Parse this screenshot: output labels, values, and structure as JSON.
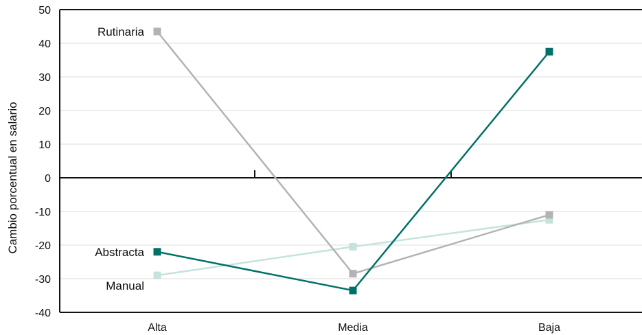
{
  "chart_data": {
    "type": "line",
    "categories": [
      "Alta",
      "Media",
      "Baja"
    ],
    "ylabel": "Cambio porcentual en salario",
    "ylim": [
      -40,
      50
    ],
    "yticks": [
      50,
      40,
      30,
      20,
      10,
      0,
      -10,
      -20,
      -30,
      -40
    ],
    "grid": true,
    "series": [
      {
        "name": "Rutinaria",
        "values": [
          43.5,
          -28.5,
          -11
        ],
        "color": "#b3b3b3"
      },
      {
        "name": "Abstracta",
        "values": [
          -22,
          -33.5,
          37.5
        ],
        "color": "#007167"
      },
      {
        "name": "Manual",
        "values": [
          -29,
          -20.5,
          -12.5
        ],
        "color": "#c5e3de"
      }
    ]
  }
}
